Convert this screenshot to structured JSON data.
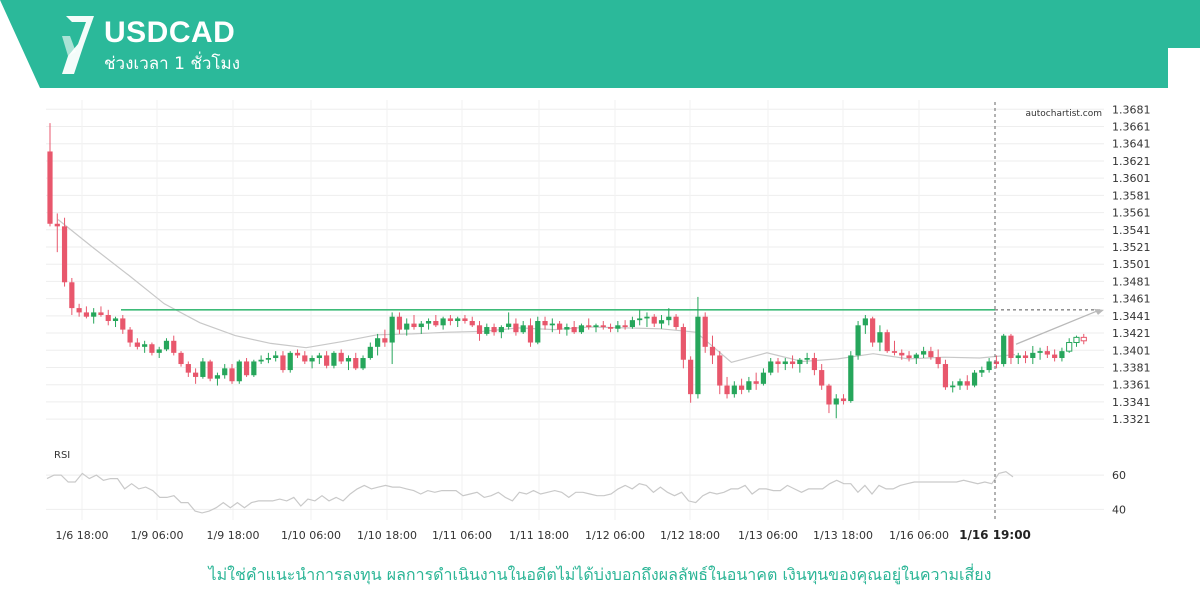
{
  "header": {
    "symbol": "USDCAD",
    "period": "ช่วงเวลา 1 ชั่วโมง",
    "brand_color": "#2bb99a"
  },
  "watermark": "autochartist.com",
  "disclaimer": "ไม่ใช่คำแนะนำการลงทุน ผลการดำเนินงานในอดีตไม่ได้บ่งบอกถึงผลลัพธ์ในอนาคต เงินทุนของคุณอยู่ในความเสี่ยง",
  "chart_data": {
    "type": "candlestick",
    "symbol": "USDCAD",
    "timeframe": "1 hour",
    "y_ticks": [
      "1.3681",
      "1.3661",
      "1.3641",
      "1.3621",
      "1.3601",
      "1.3581",
      "1.3561",
      "1.3541",
      "1.3521",
      "1.3501",
      "1.3481",
      "1.3461",
      "1.3441",
      "1.3421",
      "1.3401",
      "1.3381",
      "1.3361",
      "1.3341",
      "1.3321"
    ],
    "ylim": [
      1.3313,
      1.3686
    ],
    "x_ticks": [
      "1/6 18:00",
      "1/9 06:00",
      "1/9 18:00",
      "1/10 06:00",
      "1/10 18:00",
      "1/11 06:00",
      "1/11 18:00",
      "1/12 06:00",
      "1/12 18:00",
      "1/13 06:00",
      "1/13 18:00",
      "1/16 06:00"
    ],
    "highlight_time": "1/16 19:00",
    "bullish_color": "#26a65b",
    "bearish_color": "#e8576c",
    "resistance_level": 1.3448,
    "resistance_color": "#3dbb78",
    "moving_average": [
      1.3553,
      1.352,
      1.3488,
      1.3455,
      1.3433,
      1.3418,
      1.3409,
      1.3404,
      1.3411,
      1.3419,
      1.342,
      1.3422,
      1.3423,
      1.3427,
      1.3425,
      1.3428,
      1.3427,
      1.3426,
      1.3422,
      1.3387,
      1.3398,
      1.3388,
      1.3391,
      1.3397,
      1.3391,
      1.3393,
      1.3392,
      1.3396
    ],
    "projection": [
      1.3408,
      1.3448
    ],
    "candles": [
      [
        1.3632,
        1.3665,
        1.3545,
        1.3548
      ],
      [
        1.3548,
        1.356,
        1.3515,
        1.3545
      ],
      [
        1.3545,
        1.3555,
        1.3475,
        1.348
      ],
      [
        1.348,
        1.3485,
        1.3442,
        1.345
      ],
      [
        1.345,
        1.3455,
        1.344,
        1.3445
      ],
      [
        1.3445,
        1.3452,
        1.3438,
        1.344
      ],
      [
        1.344,
        1.345,
        1.3432,
        1.3445
      ],
      [
        1.3445,
        1.3452,
        1.344,
        1.3442
      ],
      [
        1.3442,
        1.3448,
        1.343,
        1.3435
      ],
      [
        1.3435,
        1.344,
        1.3428,
        1.3438
      ],
      [
        1.3438,
        1.3442,
        1.342,
        1.3425
      ],
      [
        1.3425,
        1.3428,
        1.3405,
        1.341
      ],
      [
        1.341,
        1.3415,
        1.3402,
        1.3405
      ],
      [
        1.3405,
        1.3412,
        1.3398,
        1.3408
      ],
      [
        1.3408,
        1.341,
        1.3395,
        1.3398
      ],
      [
        1.3398,
        1.3405,
        1.3392,
        1.3402
      ],
      [
        1.3402,
        1.3415,
        1.34,
        1.3412
      ],
      [
        1.3412,
        1.3418,
        1.3395,
        1.3398
      ],
      [
        1.3398,
        1.34,
        1.3382,
        1.3385
      ],
      [
        1.3385,
        1.3388,
        1.337,
        1.3375
      ],
      [
        1.3375,
        1.338,
        1.3362,
        1.337
      ],
      [
        1.337,
        1.3392,
        1.3368,
        1.3388
      ],
      [
        1.3388,
        1.339,
        1.3365,
        1.3368
      ],
      [
        1.3368,
        1.3375,
        1.336,
        1.3372
      ],
      [
        1.3372,
        1.3385,
        1.3368,
        1.338
      ],
      [
        1.338,
        1.3385,
        1.3362,
        1.3365
      ],
      [
        1.3365,
        1.339,
        1.3362,
        1.3388
      ],
      [
        1.3388,
        1.3392,
        1.337,
        1.3372
      ],
      [
        1.3372,
        1.339,
        1.337,
        1.3388
      ],
      [
        1.3388,
        1.3395,
        1.3385,
        1.339
      ],
      [
        1.339,
        1.3398,
        1.3386,
        1.3392
      ],
      [
        1.3392,
        1.34,
        1.3388,
        1.3395
      ],
      [
        1.3395,
        1.34,
        1.3375,
        1.3378
      ],
      [
        1.3378,
        1.34,
        1.3375,
        1.3398
      ],
      [
        1.3398,
        1.3402,
        1.3392,
        1.3395
      ],
      [
        1.3395,
        1.34,
        1.3385,
        1.3388
      ],
      [
        1.3388,
        1.3395,
        1.338,
        1.3392
      ],
      [
        1.3392,
        1.3398,
        1.3385,
        1.3395
      ],
      [
        1.3395,
        1.34,
        1.338,
        1.3383
      ],
      [
        1.3383,
        1.34,
        1.338,
        1.3398
      ],
      [
        1.3398,
        1.3402,
        1.3385,
        1.3388
      ],
      [
        1.3388,
        1.3395,
        1.3378,
        1.3392
      ],
      [
        1.3392,
        1.3398,
        1.3378,
        1.338
      ],
      [
        1.338,
        1.3395,
        1.3378,
        1.3392
      ],
      [
        1.3392,
        1.341,
        1.339,
        1.3405
      ],
      [
        1.3405,
        1.342,
        1.3395,
        1.3415
      ],
      [
        1.3415,
        1.3425,
        1.3405,
        1.341
      ],
      [
        1.341,
        1.3445,
        1.3385,
        1.344
      ],
      [
        1.344,
        1.3445,
        1.342,
        1.3425
      ],
      [
        1.3425,
        1.3438,
        1.3418,
        1.3432
      ],
      [
        1.3432,
        1.3442,
        1.3425,
        1.3428
      ],
      [
        1.3428,
        1.3435,
        1.342,
        1.3432
      ],
      [
        1.3432,
        1.3438,
        1.3425,
        1.3435
      ],
      [
        1.3435,
        1.3442,
        1.3428,
        1.343
      ],
      [
        1.343,
        1.344,
        1.3425,
        1.3438
      ],
      [
        1.3438,
        1.3442,
        1.343,
        1.3435
      ],
      [
        1.3435,
        1.344,
        1.3428,
        1.3438
      ],
      [
        1.3438,
        1.3442,
        1.3432,
        1.3435
      ],
      [
        1.3435,
        1.344,
        1.3428,
        1.343
      ],
      [
        1.343,
        1.3435,
        1.3412,
        1.342
      ],
      [
        1.342,
        1.3432,
        1.3418,
        1.3428
      ],
      [
        1.3428,
        1.3432,
        1.3418,
        1.3422
      ],
      [
        1.3422,
        1.343,
        1.3415,
        1.3428
      ],
      [
        1.3428,
        1.3445,
        1.3425,
        1.3432
      ],
      [
        1.3432,
        1.3438,
        1.3418,
        1.3422
      ],
      [
        1.3422,
        1.3435,
        1.342,
        1.343
      ],
      [
        1.343,
        1.3438,
        1.3405,
        1.341
      ],
      [
        1.341,
        1.344,
        1.3408,
        1.3435
      ],
      [
        1.3435,
        1.344,
        1.3425,
        1.343
      ],
      [
        1.343,
        1.3438,
        1.3422,
        1.3432
      ],
      [
        1.3432,
        1.3435,
        1.342,
        1.3425
      ],
      [
        1.3425,
        1.3432,
        1.3418,
        1.3428
      ],
      [
        1.3428,
        1.3435,
        1.342,
        1.3422
      ],
      [
        1.3422,
        1.3432,
        1.342,
        1.343
      ],
      [
        1.343,
        1.3438,
        1.3425,
        1.3428
      ],
      [
        1.3428,
        1.3432,
        1.3422,
        1.343
      ],
      [
        1.343,
        1.3435,
        1.3425,
        1.3428
      ],
      [
        1.3428,
        1.3432,
        1.3422,
        1.3426
      ],
      [
        1.3426,
        1.3435,
        1.3422,
        1.343
      ],
      [
        1.343,
        1.3436,
        1.3425,
        1.3428
      ],
      [
        1.3428,
        1.344,
        1.3426,
        1.3436
      ],
      [
        1.3436,
        1.3448,
        1.343,
        1.3438
      ],
      [
        1.3438,
        1.3445,
        1.3428,
        1.344
      ],
      [
        1.344,
        1.3443,
        1.3428,
        1.3432
      ],
      [
        1.3432,
        1.3442,
        1.3426,
        1.3436
      ],
      [
        1.3436,
        1.345,
        1.343,
        1.344
      ],
      [
        1.344,
        1.3443,
        1.3425,
        1.3428
      ],
      [
        1.3428,
        1.3432,
        1.338,
        1.339
      ],
      [
        1.339,
        1.3394,
        1.334,
        1.335
      ],
      [
        1.335,
        1.3463,
        1.3345,
        1.344
      ],
      [
        1.344,
        1.3445,
        1.3398,
        1.3405
      ],
      [
        1.3405,
        1.3418,
        1.3385,
        1.3395
      ],
      [
        1.3395,
        1.34,
        1.335,
        1.336
      ],
      [
        1.336,
        1.337,
        1.3345,
        1.335
      ],
      [
        1.335,
        1.3365,
        1.3346,
        1.336
      ],
      [
        1.336,
        1.3368,
        1.335,
        1.3355
      ],
      [
        1.3355,
        1.337,
        1.3352,
        1.3365
      ],
      [
        1.3365,
        1.3375,
        1.3355,
        1.3362
      ],
      [
        1.3362,
        1.338,
        1.336,
        1.3375
      ],
      [
        1.3375,
        1.3392,
        1.3372,
        1.3388
      ],
      [
        1.3388,
        1.3392,
        1.3375,
        1.3385
      ],
      [
        1.3385,
        1.3392,
        1.3378,
        1.3388
      ],
      [
        1.3388,
        1.3395,
        1.338,
        1.3385
      ],
      [
        1.3385,
        1.3392,
        1.3375,
        1.339
      ],
      [
        1.339,
        1.3398,
        1.3385,
        1.3392
      ],
      [
        1.3392,
        1.3398,
        1.3372,
        1.3378
      ],
      [
        1.3378,
        1.3385,
        1.3355,
        1.336
      ],
      [
        1.336,
        1.3362,
        1.3328,
        1.3338
      ],
      [
        1.3338,
        1.335,
        1.3322,
        1.3345
      ],
      [
        1.3345,
        1.335,
        1.3338,
        1.3342
      ],
      [
        1.3342,
        1.34,
        1.334,
        1.3395
      ],
      [
        1.3395,
        1.3435,
        1.339,
        1.343
      ],
      [
        1.343,
        1.3442,
        1.342,
        1.3438
      ],
      [
        1.3438,
        1.344,
        1.3405,
        1.341
      ],
      [
        1.341,
        1.343,
        1.34,
        1.3422
      ],
      [
        1.3422,
        1.3425,
        1.3398,
        1.34
      ],
      [
        1.34,
        1.3412,
        1.3395,
        1.3398
      ],
      [
        1.3398,
        1.3402,
        1.339,
        1.3395
      ],
      [
        1.3395,
        1.34,
        1.3388,
        1.3392
      ],
      [
        1.3392,
        1.3398,
        1.3385,
        1.3396
      ],
      [
        1.3396,
        1.3405,
        1.3392,
        1.34
      ],
      [
        1.34,
        1.3405,
        1.339,
        1.3393
      ],
      [
        1.3393,
        1.3402,
        1.338,
        1.3385
      ],
      [
        1.3385,
        1.339,
        1.3355,
        1.3358
      ],
      [
        1.3358,
        1.3365,
        1.3352,
        1.336
      ],
      [
        1.336,
        1.3368,
        1.3355,
        1.3365
      ],
      [
        1.3365,
        1.3372,
        1.3355,
        1.336
      ],
      [
        1.336,
        1.3378,
        1.3358,
        1.3375
      ],
      [
        1.3375,
        1.3382,
        1.337,
        1.3378
      ],
      [
        1.3378,
        1.3392,
        1.3375,
        1.3388
      ],
      [
        1.3388,
        1.3395,
        1.338,
        1.3385
      ],
      [
        1.3385,
        1.342,
        1.3382,
        1.3418
      ],
      [
        1.3418,
        1.342,
        1.3385,
        1.3392
      ],
      [
        1.3392,
        1.3398,
        1.3385,
        1.3395
      ],
      [
        1.3395,
        1.34,
        1.3386,
        1.3392
      ],
      [
        1.3392,
        1.3406,
        1.3385,
        1.3398
      ],
      [
        1.3398,
        1.3404,
        1.339,
        1.34
      ],
      [
        1.34,
        1.3406,
        1.3392,
        1.3396
      ],
      [
        1.3396,
        1.3402,
        1.3388,
        1.3392
      ],
      [
        1.3392,
        1.3404,
        1.3388,
        1.34
      ],
      [
        1.34,
        1.3415,
        1.3398,
        1.341
      ],
      [
        1.341,
        1.3418,
        1.3405,
        1.3416
      ],
      [
        1.3416,
        1.342,
        1.3408,
        1.3412
      ]
    ],
    "indicator": {
      "name": "RSI",
      "y_ticks": [
        "60",
        "40"
      ],
      "ylim": [
        35,
        70
      ],
      "values": [
        58,
        60,
        60,
        56,
        56,
        61,
        58,
        60,
        57,
        58,
        58,
        52,
        55,
        52,
        53,
        51,
        47,
        47,
        48,
        44,
        44,
        39,
        38,
        39,
        41,
        44,
        41,
        44,
        41,
        44,
        45,
        45,
        45,
        46,
        45,
        47,
        42,
        46,
        45,
        48,
        45,
        47,
        45,
        49,
        52,
        54,
        52,
        53,
        54,
        53,
        53,
        52,
        51,
        49,
        51,
        50,
        51,
        51,
        51,
        48,
        49,
        50,
        47,
        48,
        50,
        47,
        45,
        50,
        49,
        51,
        49,
        50,
        51,
        50,
        47,
        50,
        50,
        49,
        48,
        48,
        49,
        52,
        54,
        52,
        55,
        54,
        50,
        53,
        50,
        48,
        50,
        45,
        44,
        48,
        50,
        49,
        50,
        52,
        52,
        54,
        49,
        52,
        52,
        51,
        51,
        54,
        52,
        50,
        52,
        52,
        52,
        55,
        57,
        55,
        55,
        50,
        54,
        49,
        54,
        52,
        52,
        54,
        55,
        56,
        56,
        56,
        56,
        56,
        56,
        56,
        57,
        56,
        55,
        56,
        55,
        61,
        62,
        59
      ]
    }
  }
}
